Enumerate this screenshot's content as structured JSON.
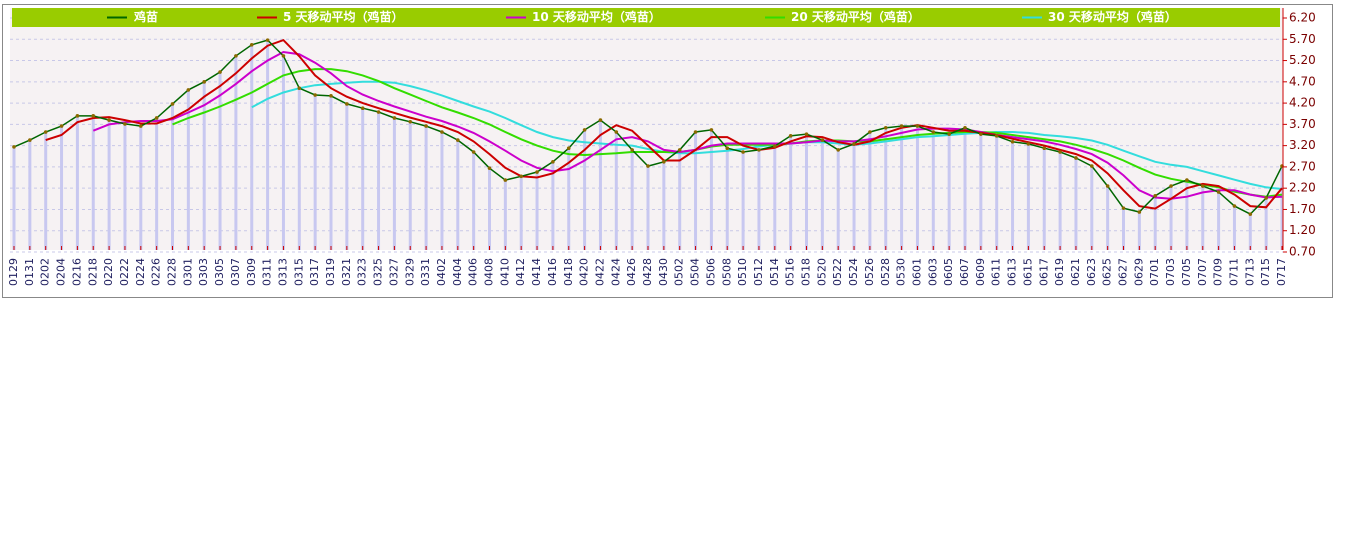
{
  "chart_data": {
    "type": "line",
    "categories": [
      "0129",
      "0131",
      "0202",
      "0204",
      "0216",
      "0218",
      "0220",
      "0222",
      "0224",
      "0226",
      "0228",
      "0301",
      "0303",
      "0305",
      "0307",
      "0309",
      "0311",
      "0313",
      "0315",
      "0317",
      "0319",
      "0321",
      "0323",
      "0325",
      "0327",
      "0329",
      "0331",
      "0402",
      "0404",
      "0406",
      "0408",
      "0410",
      "0412",
      "0414",
      "0416",
      "0418",
      "0420",
      "0422",
      "0424",
      "0426",
      "0428",
      "0430",
      "0502",
      "0504",
      "0506",
      "0508",
      "0510",
      "0512",
      "0514",
      "0516",
      "0518",
      "0520",
      "0522",
      "0524",
      "0526",
      "0528",
      "0530",
      "0601",
      "0603",
      "0605",
      "0607",
      "0609",
      "0611",
      "0613",
      "0615",
      "0617",
      "0619",
      "0621",
      "0623",
      "0625",
      "0627",
      "0629",
      "0701",
      "0703",
      "0705",
      "0707",
      "0709",
      "0711",
      "0713",
      "0715",
      "0717"
    ],
    "series": [
      {
        "name": "鸡苗",
        "color": "#006600",
        "values": [
          3.17,
          3.33,
          3.52,
          3.66,
          3.9,
          3.9,
          3.8,
          3.71,
          3.66,
          3.85,
          4.18,
          4.51,
          4.7,
          4.93,
          5.31,
          5.57,
          5.68,
          5.31,
          4.55,
          4.39,
          4.37,
          4.18,
          4.08,
          3.99,
          3.85,
          3.76,
          3.66,
          3.52,
          3.33,
          3.05,
          2.67,
          2.39,
          2.48,
          2.58,
          2.82,
          3.14,
          3.57,
          3.8,
          3.52,
          3.1,
          2.72,
          2.82,
          3.1,
          3.52,
          3.57,
          3.14,
          3.05,
          3.1,
          3.19,
          3.43,
          3.47,
          3.33,
          3.1,
          3.24,
          3.52,
          3.62,
          3.66,
          3.66,
          3.52,
          3.47,
          3.62,
          3.47,
          3.43,
          3.29,
          3.24,
          3.14,
          3.05,
          2.91,
          2.72,
          2.25,
          1.73,
          1.64,
          2.02,
          2.25,
          2.39,
          2.25,
          2.11,
          1.78,
          1.59,
          1.97,
          2.72
        ]
      },
      {
        "name": "5 天移动平均（鸡苗）",
        "color": "#cc0000",
        "values": [
          null,
          null,
          3.33,
          3.45,
          3.75,
          3.85,
          3.87,
          3.8,
          3.72,
          3.72,
          3.85,
          4.05,
          4.35,
          4.6,
          4.9,
          5.25,
          5.55,
          5.68,
          5.3,
          4.85,
          4.55,
          4.35,
          4.2,
          4.08,
          3.97,
          3.86,
          3.76,
          3.66,
          3.52,
          3.3,
          3.0,
          2.68,
          2.48,
          2.45,
          2.55,
          2.8,
          3.1,
          3.45,
          3.68,
          3.55,
          3.2,
          2.85,
          2.85,
          3.1,
          3.4,
          3.4,
          3.2,
          3.1,
          3.15,
          3.3,
          3.42,
          3.4,
          3.28,
          3.22,
          3.3,
          3.5,
          3.62,
          3.68,
          3.62,
          3.55,
          3.55,
          3.5,
          3.45,
          3.36,
          3.28,
          3.2,
          3.1,
          3.0,
          2.85,
          2.55,
          2.15,
          1.78,
          1.72,
          1.95,
          2.2,
          2.3,
          2.25,
          2.05,
          1.78,
          1.75,
          2.2
        ]
      },
      {
        "name": "10 天移动平均（鸡苗）",
        "color": "#cc00cc",
        "values": [
          null,
          null,
          null,
          null,
          null,
          3.55,
          3.7,
          3.75,
          3.78,
          3.78,
          3.82,
          3.98,
          4.15,
          4.38,
          4.65,
          4.95,
          5.2,
          5.4,
          5.35,
          5.15,
          4.9,
          4.6,
          4.4,
          4.25,
          4.12,
          4.0,
          3.88,
          3.78,
          3.65,
          3.5,
          3.3,
          3.08,
          2.85,
          2.68,
          2.6,
          2.65,
          2.85,
          3.1,
          3.35,
          3.4,
          3.3,
          3.1,
          3.05,
          3.1,
          3.2,
          3.25,
          3.25,
          3.25,
          3.25,
          3.25,
          3.28,
          3.32,
          3.3,
          3.3,
          3.35,
          3.42,
          3.5,
          3.58,
          3.6,
          3.6,
          3.58,
          3.52,
          3.45,
          3.4,
          3.35,
          3.3,
          3.22,
          3.12,
          3.0,
          2.8,
          2.5,
          2.15,
          1.98,
          1.95,
          2.0,
          2.1,
          2.15,
          2.15,
          2.05,
          1.98,
          2.0
        ]
      },
      {
        "name": "20 天移动平均（鸡苗）",
        "color": "#33dd00",
        "values": [
          null,
          null,
          null,
          null,
          null,
          null,
          null,
          null,
          null,
          null,
          3.7,
          3.85,
          3.98,
          4.12,
          4.28,
          4.45,
          4.65,
          4.85,
          4.95,
          5.0,
          5.0,
          4.95,
          4.85,
          4.72,
          4.55,
          4.4,
          4.25,
          4.1,
          3.98,
          3.85,
          3.7,
          3.52,
          3.35,
          3.2,
          3.08,
          3.0,
          2.98,
          3.0,
          3.02,
          3.05,
          3.05,
          3.05,
          3.05,
          3.1,
          3.18,
          3.22,
          3.22,
          3.22,
          3.22,
          3.25,
          3.3,
          3.32,
          3.32,
          3.3,
          3.3,
          3.35,
          3.4,
          3.45,
          3.48,
          3.5,
          3.52,
          3.52,
          3.5,
          3.45,
          3.4,
          3.35,
          3.3,
          3.22,
          3.12,
          3.0,
          2.85,
          2.68,
          2.52,
          2.42,
          2.35,
          2.28,
          2.22,
          2.12,
          2.05,
          2.0,
          2.05
        ]
      },
      {
        "name": "30 天移动平均（鸡苗）",
        "color": "#33dddd",
        "values": [
          null,
          null,
          null,
          null,
          null,
          null,
          null,
          null,
          null,
          null,
          null,
          null,
          null,
          null,
          null,
          4.1,
          4.3,
          4.45,
          4.55,
          4.62,
          4.65,
          4.68,
          4.7,
          4.7,
          4.68,
          4.6,
          4.5,
          4.38,
          4.25,
          4.12,
          4.0,
          3.85,
          3.68,
          3.52,
          3.4,
          3.32,
          3.28,
          3.25,
          3.22,
          3.2,
          3.12,
          3.05,
          3.02,
          3.02,
          3.05,
          3.08,
          3.12,
          3.18,
          3.22,
          3.25,
          3.28,
          3.28,
          3.25,
          3.22,
          3.25,
          3.3,
          3.35,
          3.4,
          3.42,
          3.45,
          3.48,
          3.5,
          3.52,
          3.52,
          3.5,
          3.45,
          3.42,
          3.38,
          3.32,
          3.22,
          3.08,
          2.95,
          2.82,
          2.75,
          2.7,
          2.6,
          2.5,
          2.4,
          2.3,
          2.22,
          2.18
        ]
      }
    ],
    "ylim": [
      0.7,
      6.2
    ],
    "yticks": [
      {
        "value": 6.2,
        "label": "6.20"
      },
      {
        "value": 5.7,
        "label": "5.70"
      },
      {
        "value": 5.2,
        "label": "5.20"
      },
      {
        "value": 4.7,
        "label": "4.70"
      },
      {
        "value": 4.2,
        "label": "4.20"
      },
      {
        "value": 3.7,
        "label": "3.70"
      },
      {
        "value": 3.2,
        "label": "3.20"
      },
      {
        "value": 2.7,
        "label": "2.70"
      },
      {
        "value": 2.2,
        "label": "2.20"
      },
      {
        "value": 1.7,
        "label": "1.70"
      },
      {
        "value": 1.2,
        "label": "1.20"
      },
      {
        "value": 0.7,
        "label": "0.70"
      }
    ],
    "grid": true,
    "legend": "top",
    "bar_color": "#c8c8f0",
    "legend_color": "#99cc00"
  }
}
